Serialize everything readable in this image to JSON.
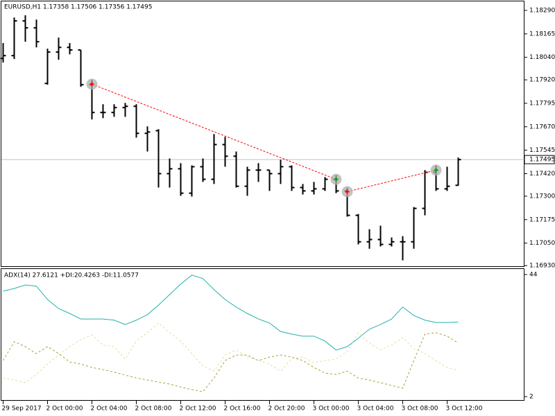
{
  "chart_data": [
    {
      "type": "ohlc",
      "title": "EURUSD,H1  1.17358 1.17506 1.17356 1.17495",
      "color": "#000000",
      "categories": [
        "29 Sep 2017",
        null,
        null,
        null,
        "2 Oct 00:00",
        null,
        null,
        null,
        "2 Oct 04:00",
        null,
        null,
        null,
        "2 Oct 08:00",
        null,
        null,
        null,
        "2 Oct 12:00",
        null,
        null,
        null,
        "2 Oct 16:00",
        null,
        null,
        null,
        "2 Oct 20:00",
        null,
        null,
        null,
        "3 Oct 00:00",
        null,
        null,
        null,
        "3 Oct 04:00",
        null,
        null,
        null,
        "3 Oct 08:00",
        null,
        null,
        null,
        "3 Oct 12:00",
        null
      ],
      "open": [
        1.18034,
        1.18049,
        1.18234,
        1.18197,
        1.17901,
        1.18068,
        1.18093,
        1.18079,
        1.17894,
        1.17746,
        1.17746,
        1.17772,
        1.17779,
        1.17635,
        1.17649,
        1.1742,
        1.17446,
        1.17316,
        1.17457,
        1.1739,
        1.17575,
        1.17513,
        1.17353,
        1.17439,
        1.17439,
        1.1742,
        1.17457,
        1.17346,
        1.17328,
        1.17339,
        1.1739,
        1.17328,
        1.17198,
        1.17057,
        1.17069,
        1.17043,
        1.17057,
        1.17057,
        1.17235,
        1.17427,
        1.17339,
        1.17358
      ],
      "high": [
        1.18116,
        1.18252,
        1.18264,
        1.18241,
        1.18086,
        1.18145,
        1.18116,
        1.18079,
        1.1792,
        1.1779,
        1.1779,
        1.17797,
        1.1779,
        1.17672,
        1.17657,
        1.17501,
        1.17476,
        1.17464,
        1.17501,
        1.17631,
        1.17616,
        1.17538,
        1.17457,
        1.17476,
        1.17439,
        1.17494,
        1.17464,
        1.17365,
        1.17376,
        1.17402,
        1.17413,
        1.17346,
        1.17205,
        1.17124,
        1.17143,
        1.1708,
        1.17087,
        1.17242,
        1.17439,
        1.17464,
        1.17457,
        1.17506
      ],
      "low": [
        1.18012,
        1.18031,
        1.18123,
        1.18093,
        1.17894,
        1.18027,
        1.18056,
        1.17883,
        1.17709,
        1.17716,
        1.17723,
        1.17723,
        1.17612,
        1.17538,
        1.17346,
        1.17346,
        1.17302,
        1.17298,
        1.17376,
        1.17365,
        1.17457,
        1.17346,
        1.17302,
        1.17376,
        1.17328,
        1.17365,
        1.17328,
        1.17309,
        1.17309,
        1.17328,
        1.17316,
        1.17191,
        1.17043,
        1.1702,
        1.17032,
        1.17032,
        1.16958,
        1.1702,
        1.17198,
        1.17328,
        1.17328,
        1.17356
      ],
      "close": [
        1.18049,
        1.18234,
        1.18197,
        1.18123,
        1.18068,
        1.18093,
        1.18079,
        1.17894,
        1.17746,
        1.17746,
        1.17772,
        1.17779,
        1.17635,
        1.17642,
        1.1742,
        1.17446,
        1.17316,
        1.17457,
        1.1739,
        1.17575,
        1.17513,
        1.17353,
        1.17439,
        1.17439,
        1.1742,
        1.17457,
        1.17346,
        1.17328,
        1.17339,
        1.1739,
        1.17328,
        1.17198,
        1.17057,
        1.17069,
        1.17043,
        1.17057,
        1.17057,
        1.17235,
        1.17427,
        1.17339,
        1.17353,
        1.17495
      ],
      "current_price": 1.17495,
      "trades": [
        {
          "color": "#ff0000",
          "bars": [
            8,
            30
          ],
          "values": [
            1.17897,
            1.1739
          ]
        },
        {
          "color": "#ff0000",
          "bars": [
            31,
            39
          ],
          "values": [
            1.17324,
            1.17439
          ]
        }
      ],
      "ylim": [
        1.16923,
        1.18338
      ],
      "yticks": [
        {
          "value": 1.1829,
          "label": "1.18290"
        },
        1.18165,
        {
          "value": 1.1804,
          "label": "1.18040"
        },
        {
          "value": 1.1792,
          "label": "1.17920"
        },
        1.17795,
        {
          "value": 1.1767,
          "label": "1.17670"
        },
        1.17545,
        {
          "value": 1.1742,
          "label": "1.17420"
        },
        {
          "value": 1.173,
          "label": "1.17300"
        },
        1.17175,
        {
          "value": 1.1705,
          "label": "1.17050"
        },
        {
          "value": 1.1693,
          "label": "1.16930"
        }
      ]
    },
    {
      "type": "line",
      "title": "ADX(14) 27.6121 +DI:20.4263 -DI:11.0577",
      "ylim": [
        0.57,
        45.9
      ],
      "yticks": [
        2,
        44
      ],
      "series": [
        {
          "name": "ADX(14)",
          "color": "#20b2aa",
          "dashed": false,
          "values": [
            38.3,
            39.2,
            40.4,
            40.0,
            35.4,
            32.3,
            30.6,
            28.7,
            28.7,
            28.7,
            28.3,
            26.8,
            28.3,
            30.2,
            33.5,
            37.1,
            40.7,
            43.8,
            42.6,
            38.8,
            35.4,
            32.8,
            30.6,
            28.7,
            27.3,
            24.4,
            23.5,
            22.8,
            22.8,
            21.1,
            18.0,
            19.2,
            22.1,
            25.2,
            26.8,
            28.7,
            32.8,
            29.9,
            28.3,
            27.5,
            27.5,
            27.6121
          ]
        },
        {
          "name": "+DI",
          "color": "#a8a030",
          "dashed": true,
          "values": [
            14.4,
            20.9,
            19.2,
            16.8,
            19.2,
            16.8,
            13.9,
            13.2,
            12.0,
            11.3,
            10.4,
            9.4,
            8.4,
            7.7,
            7.0,
            6.3,
            5.3,
            4.4,
            3.7,
            8.4,
            14.4,
            16.3,
            16.3,
            14.4,
            15.6,
            16.3,
            15.6,
            14.4,
            12.0,
            10.1,
            9.6,
            10.8,
            8.4,
            7.7,
            6.8,
            5.8,
            4.9,
            14.4,
            23.5,
            24.0,
            22.8,
            20.4263
          ]
        },
        {
          "name": "-DI",
          "color": "#e6dca0",
          "dashed": true,
          "values": [
            8.4,
            7.7,
            6.8,
            9.6,
            13.2,
            16.3,
            19.2,
            21.6,
            23.2,
            19.7,
            19.2,
            14.9,
            21.1,
            24.0,
            27.3,
            24.0,
            21.1,
            16.8,
            12.5,
            10.8,
            16.3,
            18.0,
            15.6,
            14.4,
            13.2,
            10.8,
            15.1,
            15.6,
            13.7,
            14.4,
            14.9,
            17.5,
            24.0,
            20.4,
            18.0,
            19.7,
            22.3,
            18.5,
            16.8,
            14.4,
            12.0,
            11.0577
          ]
        }
      ]
    }
  ]
}
